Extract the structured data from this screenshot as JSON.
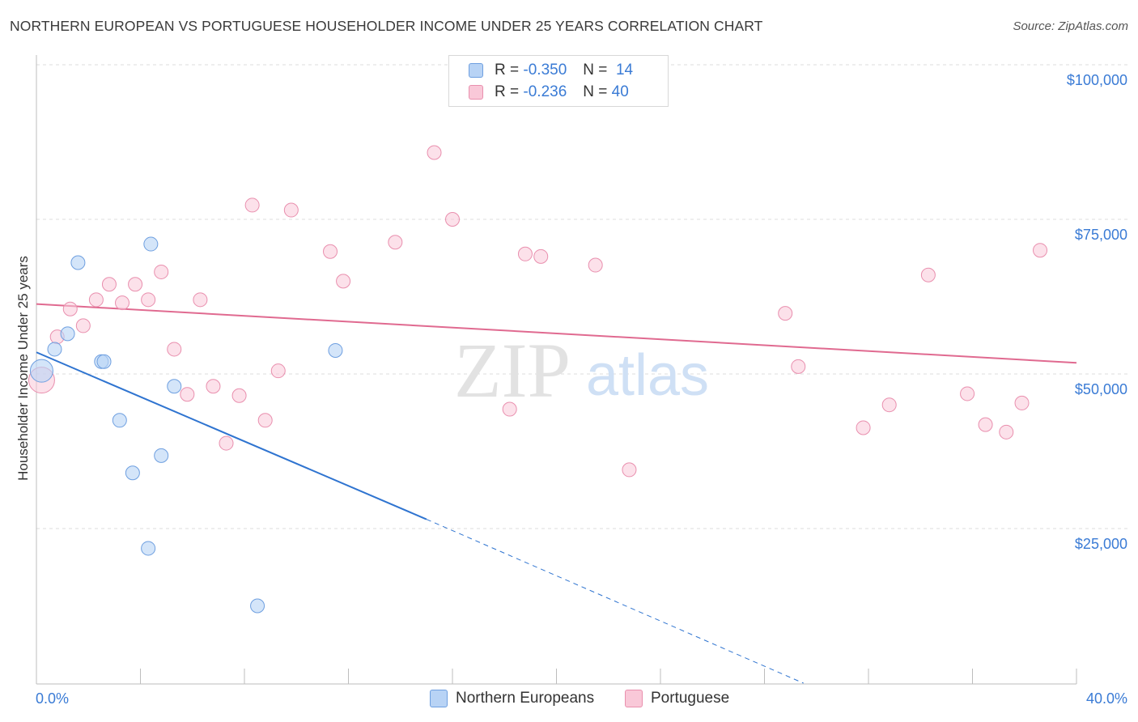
{
  "title": "NORTHERN EUROPEAN VS PORTUGUESE HOUSEHOLDER INCOME UNDER 25 YEARS CORRELATION CHART",
  "source": "Source: ZipAtlas.com",
  "legend": {
    "r_label": "R =",
    "n_label": "N =",
    "series": [
      {
        "r": "-0.350",
        "n": "14"
      },
      {
        "r": "-0.236",
        "n": "40"
      }
    ]
  },
  "bottom_legend": [
    "Northern Europeans",
    "Portuguese"
  ],
  "colors": {
    "blue": "#3a7bd5",
    "blue_line": "#2f74d0",
    "blue_fill": "#b8d3f5",
    "pink_line": "#e06a90",
    "pink_fill": "#f9c8d8"
  },
  "chart_data": {
    "type": "scatter",
    "title": "NORTHERN EUROPEAN VS PORTUGUESE HOUSEHOLDER INCOME UNDER 25 YEARS CORRELATION CHART",
    "xlabel": "",
    "ylabel": "Householder Income Under 25 years",
    "xlim": [
      0,
      40
    ],
    "ylim": [
      0,
      105000
    ],
    "x_tick_labels": [
      "0.0%",
      "40.0%"
    ],
    "y_ticks": [
      25000,
      50000,
      75000,
      100000
    ],
    "y_tick_labels": [
      "$25,000",
      "$50,000",
      "$75,000",
      "$100,000"
    ],
    "watermark": "ZIPatlas",
    "series": [
      {
        "name": "Northern Europeans",
        "r": -0.35,
        "n": 14,
        "points": [
          [
            0.2,
            50500
          ],
          [
            0.7,
            54000
          ],
          [
            1.2,
            56500
          ],
          [
            1.6,
            68000
          ],
          [
            2.5,
            52000
          ],
          [
            2.6,
            52000
          ],
          [
            3.2,
            42500
          ],
          [
            3.7,
            34000
          ],
          [
            4.3,
            21800
          ],
          [
            4.4,
            71000
          ],
          [
            4.8,
            36800
          ],
          [
            5.3,
            48000
          ],
          [
            8.5,
            12500
          ],
          [
            11.5,
            53800
          ]
        ],
        "trend": {
          "x0": 0,
          "y0": 53500,
          "x1": 15.0,
          "y1": 26500,
          "dash_to_x": 29.5,
          "dash_to_y": 0
        }
      },
      {
        "name": "Portuguese",
        "r": -0.236,
        "n": 40,
        "points": [
          [
            0.2,
            49000
          ],
          [
            0.8,
            56000
          ],
          [
            1.3,
            60500
          ],
          [
            1.8,
            57800
          ],
          [
            2.3,
            62000
          ],
          [
            2.8,
            64500
          ],
          [
            3.3,
            61500
          ],
          [
            3.8,
            64500
          ],
          [
            4.3,
            62000
          ],
          [
            4.8,
            66500
          ],
          [
            5.3,
            54000
          ],
          [
            5.8,
            46700
          ],
          [
            6.3,
            62000
          ],
          [
            6.8,
            48000
          ],
          [
            7.3,
            38800
          ],
          [
            7.8,
            46500
          ],
          [
            8.3,
            77300
          ],
          [
            8.8,
            42500
          ],
          [
            9.3,
            50500
          ],
          [
            9.8,
            76500
          ],
          [
            11.3,
            69800
          ],
          [
            11.8,
            65000
          ],
          [
            13.8,
            71300
          ],
          [
            15.3,
            85800
          ],
          [
            16.0,
            75000
          ],
          [
            18.2,
            44300
          ],
          [
            18.8,
            69400
          ],
          [
            19.4,
            69000
          ],
          [
            21.5,
            67600
          ],
          [
            22.8,
            34500
          ],
          [
            28.8,
            59800
          ],
          [
            29.3,
            51200
          ],
          [
            31.8,
            41300
          ],
          [
            32.8,
            45000
          ],
          [
            34.3,
            66000
          ],
          [
            35.8,
            46800
          ],
          [
            36.5,
            41800
          ],
          [
            37.3,
            40600
          ],
          [
            37.9,
            45300
          ],
          [
            38.6,
            70000
          ]
        ],
        "trend": {
          "x0": 0,
          "y0": 61300,
          "x1": 40,
          "y1": 51800
        }
      }
    ]
  }
}
